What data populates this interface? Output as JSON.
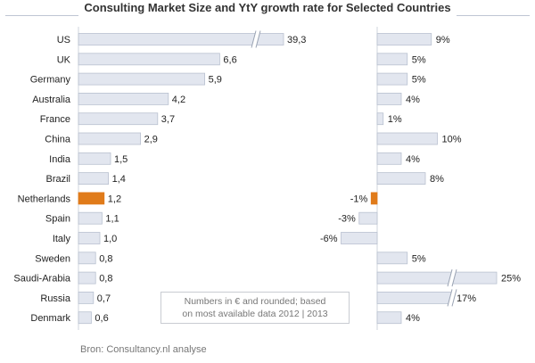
{
  "chart_data": {
    "type": "bar",
    "title": "Consulting Market Size and YtY growth rate for Selected Countries",
    "categories": [
      "US",
      "UK",
      "Germany",
      "Australia",
      "France",
      "China",
      "India",
      "Brazil",
      "Netherlands",
      "Spain",
      "Italy",
      "Sweden",
      "Saudi-Arabia",
      "Russia",
      "Denmark"
    ],
    "series": [
      {
        "name": "Market size",
        "values": [
          39.3,
          6.6,
          5.9,
          4.2,
          3.7,
          2.9,
          1.5,
          1.4,
          1.2,
          1.1,
          1.0,
          0.8,
          0.8,
          0.7,
          0.6
        ],
        "labels": [
          "39,3",
          "6,6",
          "5,9",
          "4,2",
          "3,7",
          "2,9",
          "1,5",
          "1,4",
          "1,2",
          "1,1",
          "1,0",
          "0,8",
          "0,8",
          "0,7",
          "0,6"
        ],
        "axis_break": true
      },
      {
        "name": "YtY growth rate",
        "values": [
          9,
          5,
          5,
          4,
          1,
          10,
          4,
          8,
          -1,
          -3,
          -6,
          5,
          25,
          17,
          4
        ],
        "labels": [
          "9%",
          "5%",
          "5%",
          "4%",
          "1%",
          "10%",
          "4%",
          "8%",
          "-1%",
          "-3%",
          "-6%",
          "5%",
          "25%",
          "17%",
          "4%"
        ],
        "axis_break": true
      }
    ],
    "highlight_category": "Netherlands",
    "colors": {
      "bar": "#e2e6ef",
      "bar_border": "#b9c1d0",
      "highlight": "#e07b1a"
    },
    "xlabel": "",
    "ylabel": ""
  },
  "note": {
    "line1": "Numbers in € and rounded;  based",
    "line2": "on most available data 2012 | 2013"
  },
  "source": "Bron: Consultancy.nl analyse"
}
